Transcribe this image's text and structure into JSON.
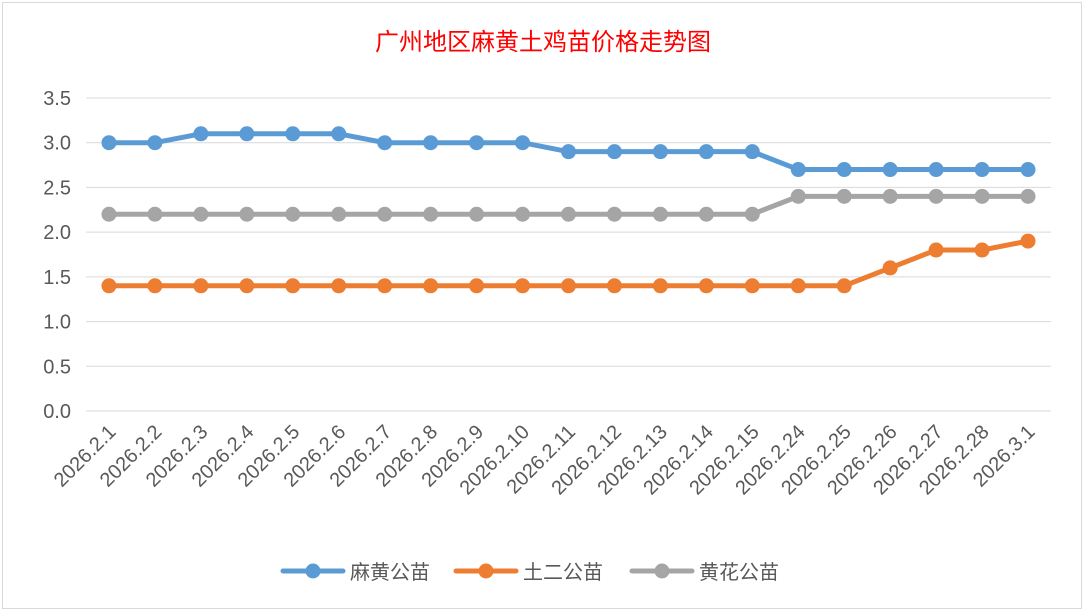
{
  "chart_data": {
    "type": "line",
    "title": "广州地区麻黄土鸡苗价格走势图",
    "xlabel": "",
    "ylabel": "",
    "ylim": [
      0,
      3.5
    ],
    "yticks": [
      "0.0",
      "0.5",
      "1.0",
      "1.5",
      "2.0",
      "2.5",
      "3.0",
      "3.5"
    ],
    "grid": true,
    "legend_position": "bottom",
    "categories": [
      "2026.2.1",
      "2026.2.2",
      "2026.2.3",
      "2026.2.4",
      "2026.2.5",
      "2026.2.6",
      "2026.2.7",
      "2026.2.8",
      "2026.2.9",
      "2026.2.10",
      "2026.2.11",
      "2026.2.12",
      "2026.2.13",
      "2026.2.14",
      "2026.2.15",
      "2026.2.24",
      "2026.2.25",
      "2026.2.26",
      "2026.2.27",
      "2026.2.28",
      "2026.3.1"
    ],
    "series": [
      {
        "name": "麻黄公苗",
        "color": "#5b9bd5",
        "values": [
          3.0,
          3.0,
          3.1,
          3.1,
          3.1,
          3.1,
          3.0,
          3.0,
          3.0,
          3.0,
          2.9,
          2.9,
          2.9,
          2.9,
          2.9,
          2.7,
          2.7,
          2.7,
          2.7,
          2.7,
          2.7
        ]
      },
      {
        "name": "土二公苗",
        "color": "#ed7d31",
        "values": [
          1.4,
          1.4,
          1.4,
          1.4,
          1.4,
          1.4,
          1.4,
          1.4,
          1.4,
          1.4,
          1.4,
          1.4,
          1.4,
          1.4,
          1.4,
          1.4,
          1.4,
          1.6,
          1.8,
          1.8,
          1.9
        ]
      },
      {
        "name": "黄花公苗",
        "color": "#a5a5a5",
        "values": [
          2.2,
          2.2,
          2.2,
          2.2,
          2.2,
          2.2,
          2.2,
          2.2,
          2.2,
          2.2,
          2.2,
          2.2,
          2.2,
          2.2,
          2.2,
          2.4,
          2.4,
          2.4,
          2.4,
          2.4,
          2.4
        ]
      }
    ],
    "colors": {
      "title": "#ff0000",
      "gridline": "#d9d9d9",
      "axis_text": "#595959"
    }
  }
}
